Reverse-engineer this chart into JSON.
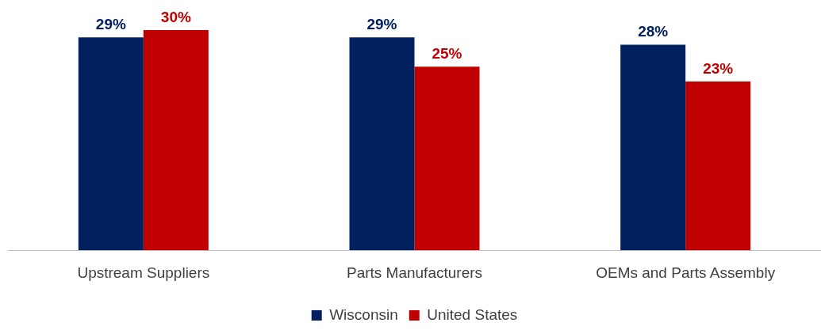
{
  "chart_data": {
    "type": "bar",
    "categories": [
      "Upstream Suppliers",
      "Parts Manufacturers",
      "OEMs and Parts Assembly"
    ],
    "series": [
      {
        "name": "Wisconsin",
        "color": "#002060",
        "values": [
          29,
          29,
          28
        ],
        "value_labels": [
          "29%",
          "29%",
          "28%"
        ]
      },
      {
        "name": "United States",
        "color": "#c00000",
        "values": [
          30,
          25,
          23
        ],
        "value_labels": [
          "30%",
          "25%",
          "23%"
        ]
      }
    ],
    "legend": "bottom",
    "grid": false
  }
}
